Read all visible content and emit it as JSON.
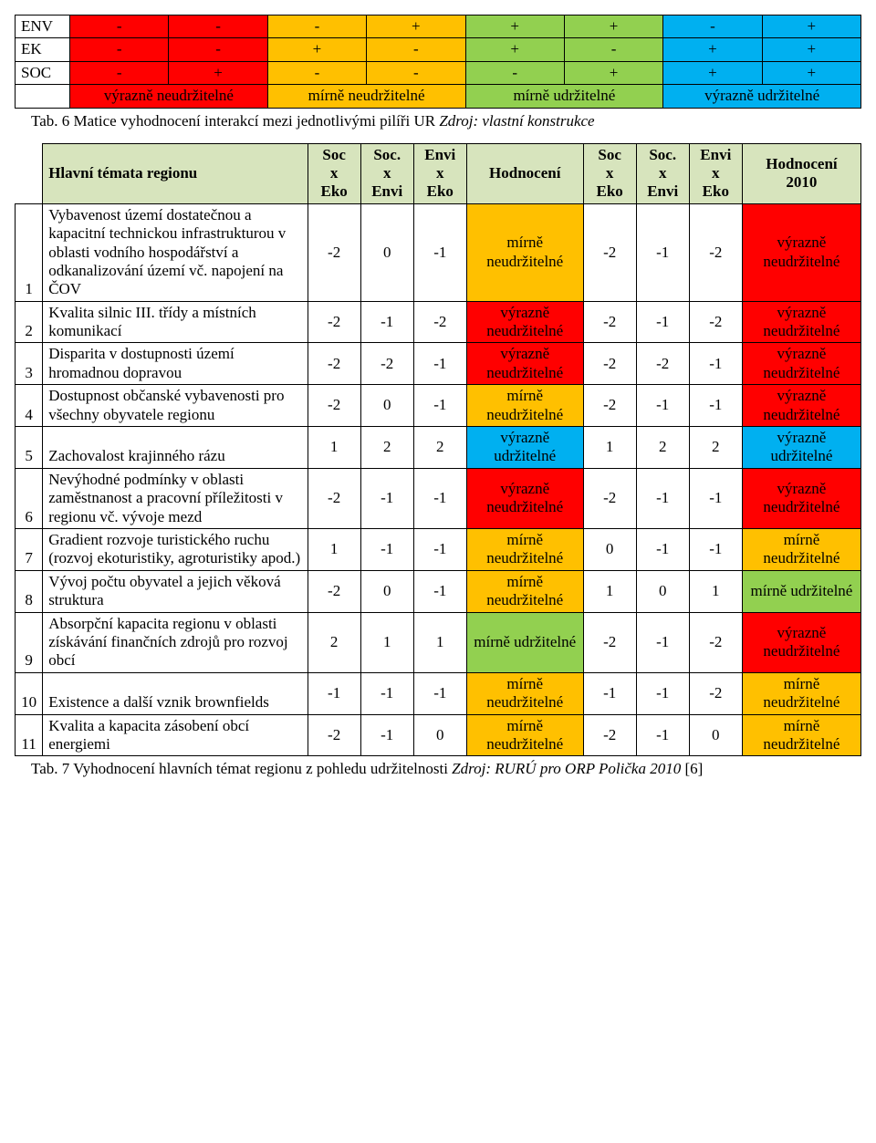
{
  "colors": {
    "red": "#ff0000",
    "orange": "#ffc000",
    "lightgreen": "#92d050",
    "blue": "#00b0f0",
    "headerGreen": "#d7e4bd"
  },
  "table1": {
    "rowLabels": [
      "ENV",
      "EK",
      "SOC"
    ],
    "cells": [
      [
        "-",
        "-",
        "-",
        "+",
        "+",
        "+",
        "-",
        "+"
      ],
      [
        "-",
        "-",
        "+",
        "-",
        "+",
        "-",
        "+",
        "+"
      ],
      [
        "-",
        "+",
        "-",
        "-",
        "-",
        "+",
        "+",
        "+"
      ]
    ],
    "legend": [
      "výrazně neudržitelné",
      "mírně neudržitelné",
      "mírně udržitelné",
      "výrazně udržitelné"
    ],
    "legendColors": [
      "red",
      "orange",
      "lightgreen",
      "blue"
    ],
    "caption_prefix": "Tab. 6 Matice vyhodnocení interakcí mezi jednotlivými pilíři UR ",
    "caption_italic": "Zdroj: vlastní konstrukce"
  },
  "table2": {
    "headers": {
      "topic": "Hlavní témata regionu",
      "soc": "Soc x Eko",
      "socE": "Soc. x Envi",
      "envi": "Envi x Eko",
      "hod": "Hodnocení",
      "hod2": "Hodnocení 2010"
    },
    "rows": [
      {
        "n": "1",
        "topic": "Vybavenost území dostatečnou a kapacitní technickou infrastrukturou v oblasti vodního hospodářství a odkanalizování území vč. napojení na ČOV",
        "a": [
          "-2",
          "0",
          "-1"
        ],
        "hod": "mírně neudržitelné",
        "hodColor": "orange",
        "b": [
          "-2",
          "-1",
          "-2"
        ],
        "hod2": "výrazně neudržitelné",
        "hod2Color": "red"
      },
      {
        "n": "2",
        "topic": "Kvalita silnic III. třídy a místních komunikací",
        "a": [
          "-2",
          "-1",
          "-2"
        ],
        "hod": "výrazně neudržitelné",
        "hodColor": "red",
        "b": [
          "-2",
          "-1",
          "-2"
        ],
        "hod2": "výrazně neudržitelné",
        "hod2Color": "red"
      },
      {
        "n": "3",
        "topic": "Disparita v dostupnosti území hromadnou dopravou",
        "a": [
          "-2",
          "-2",
          "-1"
        ],
        "hod": "výrazně neudržitelné",
        "hodColor": "red",
        "b": [
          "-2",
          "-2",
          "-1"
        ],
        "hod2": "výrazně neudržitelné",
        "hod2Color": "red"
      },
      {
        "n": "4",
        "topic": "Dostupnost občanské vybavenosti pro všechny obyvatele regionu",
        "a": [
          "-2",
          "0",
          "-1"
        ],
        "hod": "mírně neudržitelné",
        "hodColor": "orange",
        "b": [
          "-2",
          "-1",
          "-1"
        ],
        "hod2": "výrazně neudržitelné",
        "hod2Color": "red"
      },
      {
        "n": "5",
        "topic": "Zachovalost krajinného rázu",
        "a": [
          "1",
          "2",
          "2"
        ],
        "hod": "výrazně udržitelné",
        "hodColor": "blue",
        "b": [
          "1",
          "2",
          "2"
        ],
        "hod2": "výrazně udržitelné",
        "hod2Color": "blue"
      },
      {
        "n": "6",
        "topic": "Nevýhodné podmínky v oblasti zaměstnanost a pracovní příležitosti v regionu vč. vývoje mezd",
        "a": [
          "-2",
          "-1",
          "-1"
        ],
        "hod": "výrazně neudržitelné",
        "hodColor": "red",
        "b": [
          "-2",
          "-1",
          "-1"
        ],
        "hod2": "výrazně neudržitelné",
        "hod2Color": "red"
      },
      {
        "n": "7",
        "topic": "Gradient rozvoje turistického ruchu (rozvoj ekoturistiky, agroturistiky apod.)",
        "a": [
          "1",
          "-1",
          "-1"
        ],
        "hod": "mírně neudržitelné",
        "hodColor": "orange",
        "b": [
          "0",
          "-1",
          "-1"
        ],
        "hod2": "mírně neudržitelné",
        "hod2Color": "orange"
      },
      {
        "n": "8",
        "topic": "Vývoj počtu obyvatel a jejich věková struktura",
        "a": [
          "-2",
          "0",
          "-1"
        ],
        "hod": "mírně neudržitelné",
        "hodColor": "orange",
        "b": [
          "1",
          "0",
          "1"
        ],
        "hod2": "mírně udržitelné",
        "hod2Color": "lightgreen"
      },
      {
        "n": "9",
        "topic": "Absorpční kapacita regionu v oblasti získávání finančních zdrojů pro rozvoj obcí",
        "a": [
          "2",
          "1",
          "1"
        ],
        "hod": "mírně udržitelné",
        "hodColor": "lightgreen",
        "b": [
          "-2",
          "-1",
          "-2"
        ],
        "hod2": "výrazně neudržitelné",
        "hod2Color": "red"
      },
      {
        "n": "10",
        "topic": "Existence a další vznik brownfields",
        "a": [
          "-1",
          "-1",
          "-1"
        ],
        "hod": "mírně neudržitelné",
        "hodColor": "orange",
        "b": [
          "-1",
          "-1",
          "-2"
        ],
        "hod2": "mírně neudržitelné",
        "hod2Color": "orange"
      },
      {
        "n": "11",
        "topic": "Kvalita a kapacita zásobení obcí energiemi",
        "a": [
          "-2",
          "-1",
          "0"
        ],
        "hod": "mírně neudržitelné",
        "hodColor": "orange",
        "b": [
          "-2",
          "-1",
          "0"
        ],
        "hod2": "mírně neudržitelné",
        "hod2Color": "orange"
      }
    ],
    "caption_prefix": "Tab. 7 Vyhodnocení hlavních témat regionu z pohledu udržitelnosti ",
    "caption_italic": "Zdroj: RURÚ pro ORP Polička 2010 ",
    "caption_ref": "[6]"
  }
}
